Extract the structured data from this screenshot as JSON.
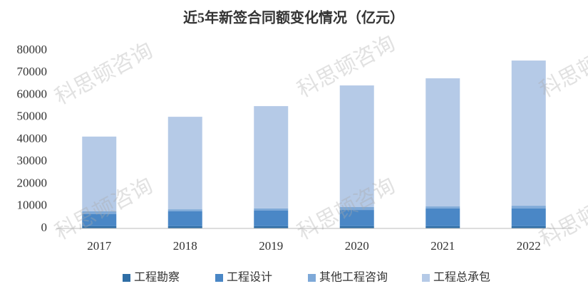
{
  "chart_data": {
    "type": "stacked_bar",
    "title": "近5年新签合同额变化情况（亿元）",
    "watermark": "科思顿咨询",
    "categories": [
      "2017",
      "2018",
      "2019",
      "2020",
      "2021",
      "2022"
    ],
    "series": [
      {
        "name": "工程勘察",
        "color": "#2f6ea6",
        "values": [
          1000,
          1000,
          1000,
          1000,
          1000,
          1000
        ]
      },
      {
        "name": "工程设计",
        "color": "#4a87c6",
        "values": [
          5400,
          6700,
          7000,
          7300,
          8000,
          8000
        ]
      },
      {
        "name": "其他工程咨询",
        "color": "#7ea9d8",
        "values": [
          1300,
          900,
          1000,
          1300,
          900,
          1200
        ]
      },
      {
        "name": "工程总承包",
        "color": "#b5cae7",
        "values": [
          33600,
          41600,
          46000,
          54700,
          57600,
          65300
        ]
      }
    ],
    "ylim": [
      0,
      80000
    ],
    "yticks": [
      0,
      10000,
      20000,
      30000,
      40000,
      50000,
      60000,
      70000,
      80000
    ]
  }
}
